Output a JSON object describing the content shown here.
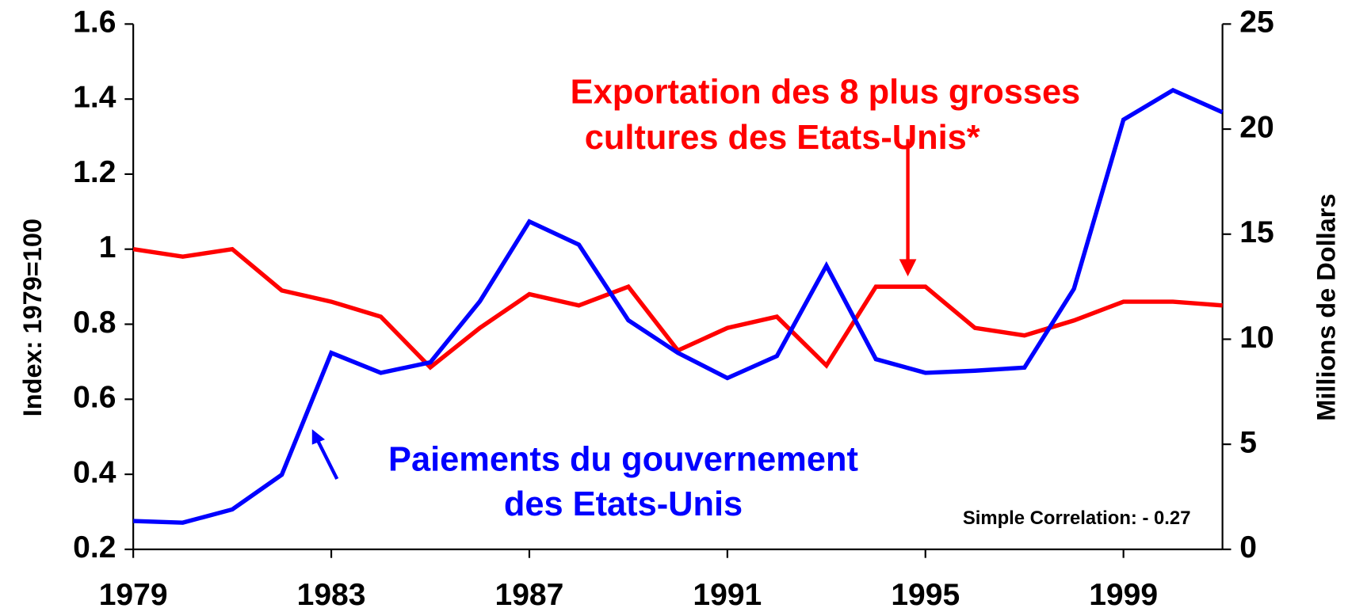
{
  "chart_data": {
    "type": "line",
    "x": [
      1979,
      1980,
      1981,
      1982,
      1983,
      1984,
      1985,
      1986,
      1987,
      1988,
      1989,
      1990,
      1991,
      1992,
      1993,
      1994,
      1995,
      1996,
      1997,
      1998,
      1999,
      2000,
      2001
    ],
    "series": [
      {
        "label_lines": [
          "Exportation des 8 plus grosses",
          "cultures des Etats-Unis*"
        ],
        "color": "#ff0000",
        "values": [
          1.0,
          0.98,
          1.0,
          0.89,
          0.86,
          0.82,
          0.685,
          0.79,
          0.88,
          0.85,
          0.9,
          0.73,
          0.79,
          0.82,
          0.69,
          0.9,
          0.9,
          0.79,
          0.77,
          0.81,
          0.86,
          0.86,
          0.85
        ]
      },
      {
        "label_lines": [
          "Paiements du gouvernement",
          "des Etats-Unis"
        ],
        "color": "#0000ff",
        "axis": "y2",
        "values": [
          1.35,
          1.27,
          1.9,
          3.55,
          9.35,
          8.4,
          8.9,
          11.8,
          15.6,
          14.5,
          10.9,
          9.35,
          8.15,
          9.2,
          13.5,
          9.05,
          8.4,
          8.5,
          8.65,
          12.4,
          20.45,
          21.85,
          20.8
        ]
      }
    ],
    "xlim": [
      1979,
      2001
    ],
    "xticks": [
      1979,
      1983,
      1987,
      1991,
      1995,
      1999
    ],
    "ylim": [
      0.2,
      1.6
    ],
    "yticks": [
      0.2,
      0.4,
      0.6,
      0.8,
      1,
      1.2,
      1.4,
      1.6
    ],
    "y2lim": [
      0,
      25
    ],
    "y2ticks": [
      0,
      5,
      10,
      15,
      20,
      25
    ],
    "ylabel": "Index: 1979=100",
    "y2label": "Millions de Dollars",
    "annotation": "Simple Correlation: - 0.27"
  }
}
